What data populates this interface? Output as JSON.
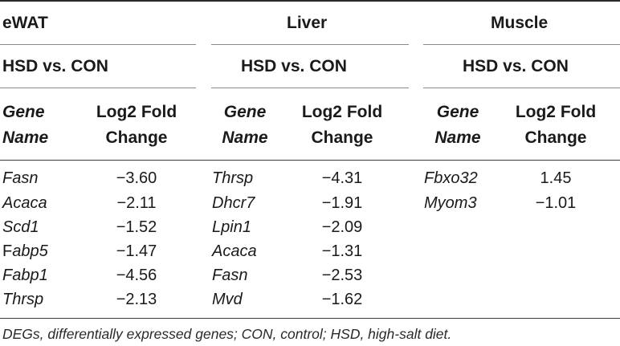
{
  "sections": {
    "ewat": "eWAT",
    "liver": "Liver",
    "muscle": "Muscle"
  },
  "comparisons": {
    "ewat": "HSD vs. CON",
    "liver": "HSD vs. CON",
    "muscle": "HSD vs. CON"
  },
  "headers": {
    "gene_line1": "Gene",
    "gene_line2": "Name",
    "fold_line1": "Log2 Fold",
    "fold_line2": "Change"
  },
  "ewat_rows": [
    {
      "gene": "Fasn",
      "value": "−3.60"
    },
    {
      "gene_prefix": "F",
      "gene_rest": "abp5",
      "value": "−1.47"
    },
    {
      "gene": "Acaca",
      "value": "−2.11"
    },
    {
      "gene": "Scd1",
      "value": "−1.52"
    },
    {
      "gene": "Fabp1",
      "value": "−4.56"
    },
    {
      "gene": "Thrsp",
      "value": "−2.13"
    }
  ],
  "liver_rows": [
    {
      "gene": "Thrsp",
      "value": "−4.31"
    },
    {
      "gene": "Dhcr7",
      "value": "−1.91"
    },
    {
      "gene": "Lpin1",
      "value": "−2.09"
    },
    {
      "gene": "Acaca",
      "value": "−1.31"
    },
    {
      "gene": "Fasn",
      "value": "−2.53"
    },
    {
      "gene": "Mvd",
      "value": "−1.62"
    }
  ],
  "muscle_rows": [
    {
      "gene": "Fbxo32",
      "value": "1.45"
    },
    {
      "gene": "Myom3",
      "value": "−1.01"
    }
  ],
  "footnote": "DEGs, differentially expressed genes; CON, control; HSD, high-salt diet."
}
